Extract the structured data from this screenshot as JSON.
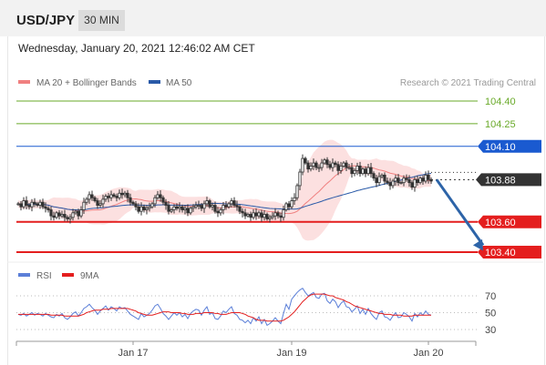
{
  "header": {
    "symbol": "USD/JPY",
    "timeframe": "30 MIN",
    "datetime": "Wednesday, January 20, 2021 12:46:02 AM CET"
  },
  "colors": {
    "bollinger": "#f08080",
    "band_fill": "#fbdada",
    "ma50": "#2a5aa8",
    "up_candle": "#ffffff",
    "down_candle": "#333333",
    "target_line": "#6aaa2a",
    "resistance": "#1a5ad0",
    "support": "#e41e1e",
    "arrow": "#2d64a8",
    "price_box": "#333333",
    "rsi": "#5b7fd8",
    "rsi_ma": "#e41e1e"
  },
  "chart_data": [
    {
      "type": "candlestick",
      "legend": [
        {
          "name": "MA 20 + Bollinger Bands",
          "color": "#f08080"
        },
        {
          "name": "MA 50",
          "color": "#2a5aa8"
        }
      ],
      "legend_placement": "top-left",
      "copyright": "Research © 2021 Trading Central",
      "x_tick_labels": [
        {
          "label": "Jan 17",
          "index": 42
        },
        {
          "label": "Jan 19",
          "index": 100
        },
        {
          "label": "Jan 20",
          "index": 150
        }
      ],
      "ylim": [
        103.38,
        104.5
      ],
      "levels": [
        {
          "label": "104.40",
          "value": 104.4,
          "style": "target",
          "color": "#6aaa2a"
        },
        {
          "label": "104.25",
          "value": 104.25,
          "style": "target",
          "color": "#6aaa2a"
        },
        {
          "label": "104.10",
          "value": 104.1,
          "style": "resistance",
          "color": "#1a5ad0"
        },
        {
          "label": "103.60",
          "value": 103.6,
          "style": "support",
          "color": "#e41e1e"
        },
        {
          "label": "103.40",
          "value": 103.4,
          "style": "support",
          "color": "#e41e1e"
        }
      ],
      "current_price": {
        "label": "103.88",
        "value": 103.88
      },
      "forecast_arrow": {
        "from_index": 153,
        "from_value": 103.88,
        "to_index": 170,
        "to_value": 103.41
      },
      "candles_close": [
        103.72,
        103.7,
        103.74,
        103.71,
        103.7,
        103.73,
        103.72,
        103.71,
        103.73,
        103.7,
        103.69,
        103.68,
        103.64,
        103.63,
        103.66,
        103.64,
        103.65,
        103.63,
        103.62,
        103.63,
        103.66,
        103.67,
        103.64,
        103.68,
        103.73,
        103.75,
        103.78,
        103.76,
        103.74,
        103.71,
        103.72,
        103.75,
        103.77,
        103.76,
        103.78,
        103.77,
        103.76,
        103.79,
        103.78,
        103.79,
        103.76,
        103.73,
        103.72,
        103.7,
        103.67,
        103.7,
        103.68,
        103.69,
        103.7,
        103.72,
        103.76,
        103.78,
        103.76,
        103.73,
        103.71,
        103.67,
        103.68,
        103.7,
        103.69,
        103.7,
        103.68,
        103.69,
        103.66,
        103.69,
        103.7,
        103.71,
        103.71,
        103.69,
        103.72,
        103.74,
        103.7,
        103.71,
        103.67,
        103.66,
        103.68,
        103.71,
        103.7,
        103.72,
        103.74,
        103.71,
        103.7,
        103.67,
        103.66,
        103.64,
        103.65,
        103.63,
        103.66,
        103.64,
        103.66,
        103.63,
        103.65,
        103.62,
        103.63,
        103.64,
        103.66,
        103.64,
        103.63,
        103.68,
        103.72,
        103.7,
        103.74,
        103.76,
        103.84,
        103.93,
        104.02,
        103.99,
        103.95,
        103.97,
        103.99,
        103.96,
        103.96,
        103.99,
        104.01,
        103.98,
        103.96,
        103.99,
        103.98,
        103.94,
        103.97,
        103.99,
        103.96,
        103.96,
        103.92,
        103.94,
        103.97,
        103.92,
        103.95,
        103.92,
        103.96,
        103.92,
        103.89,
        103.86,
        103.9,
        103.91,
        103.87,
        103.86,
        103.84,
        103.87,
        103.89,
        103.86,
        103.86,
        103.89,
        103.88,
        103.86,
        103.83,
        103.88,
        103.86,
        103.89,
        103.87,
        103.91,
        103.88,
        103.87
      ],
      "candles_open_first": 103.72
    },
    {
      "type": "line",
      "legend": [
        {
          "name": "RSI",
          "color": "#5b7fd8"
        },
        {
          "name": "9MA",
          "color": "#e41e1e"
        }
      ],
      "ylim": [
        20,
        85
      ],
      "y_ticks": [
        {
          "label": "70",
          "value": 70
        },
        {
          "label": "50",
          "value": 50
        },
        {
          "label": "30",
          "value": 30
        }
      ],
      "rsi_values": [
        48,
        47,
        49,
        46,
        48,
        50,
        47,
        49,
        48,
        46,
        49,
        47,
        45,
        44,
        48,
        46,
        49,
        44,
        42,
        45,
        49,
        51,
        46,
        50,
        55,
        57,
        60,
        56,
        53,
        48,
        52,
        55,
        58,
        53,
        57,
        55,
        52,
        57,
        55,
        56,
        52,
        48,
        46,
        44,
        42,
        49,
        45,
        47,
        49,
        53,
        58,
        60,
        55,
        49,
        46,
        42,
        46,
        50,
        47,
        50,
        45,
        48,
        43,
        49,
        52,
        54,
        53,
        47,
        53,
        57,
        48,
        50,
        43,
        42,
        46,
        52,
        50,
        54,
        57,
        49,
        47,
        42,
        41,
        38,
        41,
        37,
        44,
        40,
        45,
        37,
        42,
        35,
        37,
        40,
        44,
        40,
        37,
        49,
        60,
        54,
        66,
        70,
        74,
        77,
        79,
        74,
        70,
        72,
        74,
        68,
        67,
        72,
        73,
        64,
        61,
        66,
        63,
        56,
        61,
        64,
        57,
        56,
        51,
        54,
        58,
        49,
        54,
        48,
        55,
        49,
        45,
        42,
        50,
        52,
        45,
        44,
        41,
        46,
        50,
        44,
        45,
        50,
        48,
        45,
        40,
        49,
        45,
        50,
        47,
        52,
        48,
        47
      ],
      "rsi_ma_values": [
        48,
        48,
        48,
        48,
        48,
        48,
        48,
        48,
        48,
        48,
        48,
        48,
        47,
        47,
        47,
        47,
        47,
        46,
        46,
        46,
        46,
        46,
        46,
        47,
        48,
        50,
        51,
        52,
        53,
        53,
        53,
        54,
        54,
        54,
        55,
        55,
        55,
        55,
        55,
        55,
        55,
        54,
        53,
        52,
        50,
        49,
        48,
        47,
        47,
        47,
        48,
        49,
        50,
        51,
        51,
        51,
        50,
        50,
        50,
        50,
        49,
        49,
        48,
        48,
        48,
        49,
        49,
        49,
        50,
        50,
        50,
        50,
        49,
        49,
        48,
        48,
        48,
        49,
        50,
        50,
        50,
        50,
        49,
        48,
        46,
        45,
        44,
        42,
        41,
        41,
        41,
        40,
        40,
        40,
        40,
        40,
        40,
        41,
        43,
        45,
        48,
        51,
        55,
        59,
        63,
        66,
        69,
        71,
        72,
        72,
        72,
        72,
        72,
        71,
        70,
        70,
        68,
        67,
        66,
        65,
        63,
        62,
        60,
        58,
        57,
        56,
        55,
        54,
        53,
        52,
        51,
        50,
        49,
        49,
        48,
        48,
        48,
        47,
        47,
        47,
        47,
        46,
        46,
        46,
        46,
        47,
        47,
        47,
        47,
        47,
        47,
        47
      ]
    }
  ]
}
